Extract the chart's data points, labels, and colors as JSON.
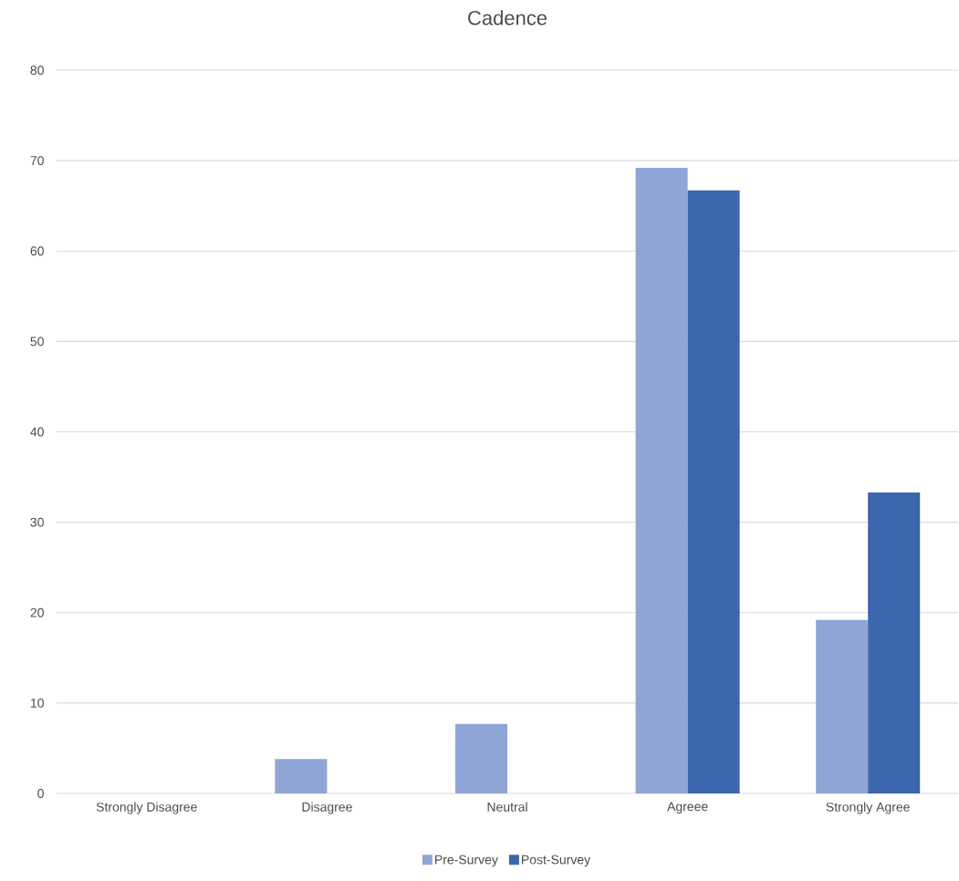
{
  "chart_data": {
    "type": "bar",
    "title": "Cadence",
    "categories": [
      "Strongly Disagree",
      "Disagree",
      "Neutral",
      "Agreee",
      "Strongly Agree"
    ],
    "series": [
      {
        "name": "Pre-Survey",
        "color": "#8fa5d5",
        "values": [
          0,
          3.8,
          7.7,
          69.2,
          19.2
        ]
      },
      {
        "name": "Post-Survey",
        "color": "#3c66ae",
        "values": [
          0,
          0,
          0,
          66.7,
          33.3
        ]
      }
    ],
    "ylim": [
      0,
      80
    ],
    "yticks": [
      0,
      10,
      20,
      30,
      40,
      50,
      60,
      70,
      80
    ],
    "grid": "y",
    "legend": "bottom"
  }
}
